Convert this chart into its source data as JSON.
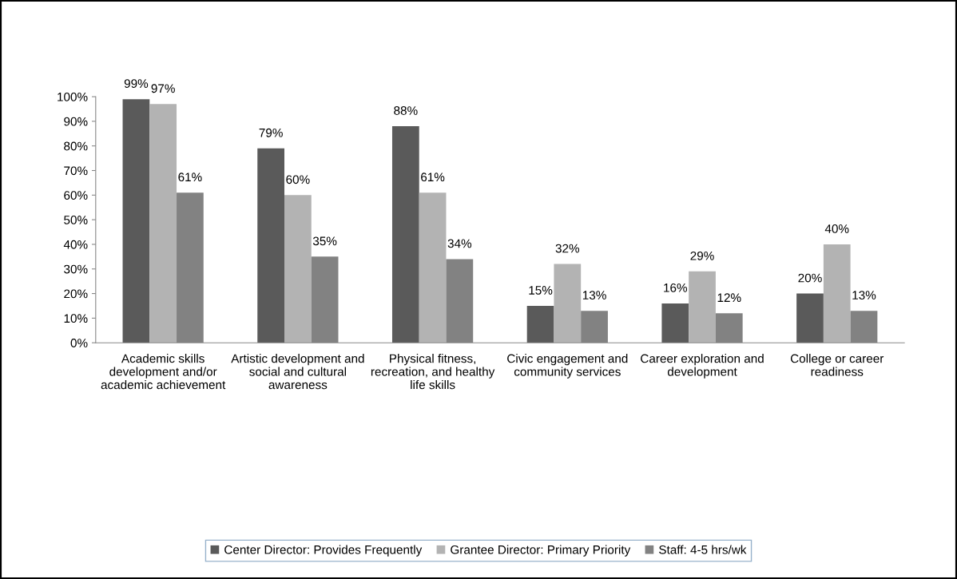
{
  "chart_data": {
    "type": "bar",
    "categories": [
      "Academic skills\ndevelopment and/or\nacademic achievement",
      "Artistic development and\nsocial and cultural\nawareness",
      "Physical fitness,\nrecreation, and healthy\nlife skills",
      "Civic engagement and\ncommunity services",
      "Career exploration and\ndevelopment",
      "College or career\nreadiness"
    ],
    "series": [
      {
        "name": "Center Director: Provides Frequently",
        "color": "#5a5a5a",
        "values": [
          99,
          79,
          88,
          15,
          16,
          20
        ],
        "value_labels": [
          "99%",
          "79%",
          "88%",
          "15%",
          "16%",
          "20%"
        ]
      },
      {
        "name": "Grantee Director: Primary Priority",
        "color": "#b3b3b3",
        "values": [
          97,
          60,
          61,
          32,
          29,
          40
        ],
        "value_labels": [
          "97%",
          "60%",
          "61%",
          "32%",
          "29%",
          "40%"
        ]
      },
      {
        "name": "Staff: 4-5 hrs/wk",
        "color": "#828282",
        "values": [
          61,
          35,
          34,
          13,
          12,
          13
        ],
        "value_labels": [
          "61%",
          "35%",
          "34%",
          "13%",
          "12%",
          "13%"
        ]
      }
    ],
    "ylim": [
      0,
      100
    ],
    "yticks": [
      {
        "value": 0,
        "label": "0%"
      },
      {
        "value": 10,
        "label": "10%"
      },
      {
        "value": 20,
        "label": "20%"
      },
      {
        "value": 30,
        "label": "30%"
      },
      {
        "value": 40,
        "label": "40%"
      },
      {
        "value": 50,
        "label": "50%"
      },
      {
        "value": 60,
        "label": "60%"
      },
      {
        "value": 70,
        "label": "70%"
      },
      {
        "value": 80,
        "label": "80%"
      },
      {
        "value": 90,
        "label": "90%"
      },
      {
        "value": 100,
        "label": "100%"
      }
    ],
    "grid": false,
    "legend": "bottom"
  }
}
